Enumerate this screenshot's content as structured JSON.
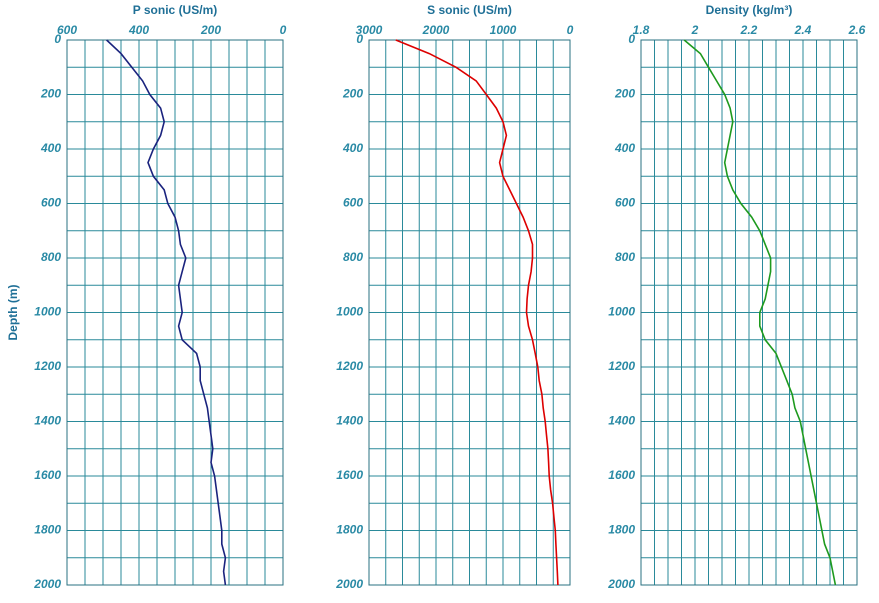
{
  "chart_data": [
    {
      "type": "line",
      "title": "P sonic (US/m)",
      "y_label": "Depth (m)",
      "color": "#1a237e",
      "xlim": [
        600,
        0
      ],
      "xticks": [
        600,
        400,
        200,
        0
      ],
      "xgrid": [
        600,
        550,
        500,
        450,
        400,
        350,
        300,
        250,
        200,
        150,
        100,
        50,
        0
      ],
      "ylim": [
        0,
        2000
      ],
      "yticks": [
        0,
        200,
        400,
        600,
        800,
        1000,
        1200,
        1400,
        1600,
        1800,
        2000
      ],
      "ygrid": [
        0,
        100,
        200,
        300,
        400,
        500,
        600,
        700,
        800,
        900,
        1000,
        1100,
        1200,
        1300,
        1400,
        1500,
        1600,
        1700,
        1800,
        1900,
        2000
      ],
      "depth": [
        0,
        50,
        100,
        150,
        200,
        250,
        300,
        350,
        400,
        450,
        500,
        550,
        600,
        650,
        700,
        750,
        800,
        850,
        900,
        950,
        1000,
        1050,
        1100,
        1150,
        1200,
        1250,
        1300,
        1350,
        1400,
        1450,
        1500,
        1550,
        1600,
        1650,
        1700,
        1750,
        1800,
        1850,
        1900,
        1950,
        2000
      ],
      "values": [
        490,
        450,
        420,
        390,
        370,
        340,
        330,
        340,
        360,
        375,
        360,
        330,
        320,
        300,
        290,
        285,
        270,
        280,
        290,
        285,
        280,
        290,
        280,
        240,
        230,
        230,
        220,
        210,
        205,
        200,
        195,
        200,
        190,
        185,
        180,
        175,
        170,
        170,
        160,
        165,
        160
      ]
    },
    {
      "type": "line",
      "title": "S sonic (US/m)",
      "color": "#dd0000",
      "xlim": [
        3000,
        0
      ],
      "xticks": [
        3000,
        2000,
        1000,
        0
      ],
      "xgrid": [
        3000,
        2750,
        2500,
        2250,
        2000,
        1750,
        1500,
        1250,
        1000,
        750,
        500,
        250,
        0
      ],
      "ylim": [
        0,
        2000
      ],
      "yticks": [
        0,
        200,
        400,
        600,
        800,
        1000,
        1200,
        1400,
        1600,
        1800,
        2000
      ],
      "ygrid": [
        0,
        100,
        200,
        300,
        400,
        500,
        600,
        700,
        800,
        900,
        1000,
        1100,
        1200,
        1300,
        1400,
        1500,
        1600,
        1700,
        1800,
        1900,
        2000
      ],
      "depth": [
        0,
        50,
        100,
        150,
        200,
        250,
        300,
        350,
        400,
        450,
        500,
        550,
        600,
        650,
        700,
        750,
        800,
        850,
        900,
        950,
        1000,
        1050,
        1100,
        1150,
        1200,
        1250,
        1300,
        1350,
        1400,
        1450,
        1500,
        1550,
        1600,
        1650,
        1700,
        1750,
        1800,
        1850,
        1900,
        1950,
        2000
      ],
      "values": [
        2600,
        2100,
        1700,
        1400,
        1250,
        1100,
        1000,
        950,
        1000,
        1050,
        1000,
        900,
        800,
        700,
        620,
        560,
        560,
        580,
        620,
        640,
        650,
        620,
        560,
        520,
        480,
        460,
        420,
        400,
        370,
        350,
        330,
        320,
        310,
        290,
        260,
        240,
        220,
        210,
        200,
        190,
        180
      ]
    },
    {
      "type": "line",
      "title": "Density (kg/m³)",
      "color": "#1e9a1e",
      "xlim": [
        1.8,
        2.6
      ],
      "xticks": [
        1.8,
        2,
        2.2,
        2.4,
        2.6
      ],
      "xgrid": [
        1.8,
        1.85,
        1.9,
        1.95,
        2,
        2.05,
        2.1,
        2.15,
        2.2,
        2.25,
        2.3,
        2.35,
        2.4,
        2.45,
        2.5,
        2.55,
        2.6
      ],
      "ylim": [
        0,
        2000
      ],
      "yticks": [
        0,
        200,
        400,
        600,
        800,
        1000,
        1200,
        1400,
        1600,
        1800,
        2000
      ],
      "ygrid": [
        0,
        100,
        200,
        300,
        400,
        500,
        600,
        700,
        800,
        900,
        1000,
        1100,
        1200,
        1300,
        1400,
        1500,
        1600,
        1700,
        1800,
        1900,
        2000
      ],
      "depth": [
        0,
        50,
        100,
        150,
        200,
        250,
        300,
        350,
        400,
        450,
        500,
        550,
        600,
        650,
        700,
        750,
        800,
        850,
        900,
        950,
        1000,
        1050,
        1100,
        1150,
        1200,
        1250,
        1300,
        1350,
        1400,
        1450,
        1500,
        1550,
        1600,
        1650,
        1700,
        1750,
        1800,
        1850,
        1900,
        1950,
        2000
      ],
      "values": [
        1.96,
        2.02,
        2.05,
        2.08,
        2.11,
        2.13,
        2.14,
        2.13,
        2.12,
        2.11,
        2.12,
        2.14,
        2.17,
        2.21,
        2.24,
        2.26,
        2.28,
        2.28,
        2.27,
        2.26,
        2.24,
        2.24,
        2.26,
        2.3,
        2.32,
        2.34,
        2.36,
        2.37,
        2.39,
        2.4,
        2.41,
        2.42,
        2.43,
        2.44,
        2.45,
        2.46,
        2.47,
        2.48,
        2.5,
        2.51,
        2.52
      ]
    }
  ]
}
